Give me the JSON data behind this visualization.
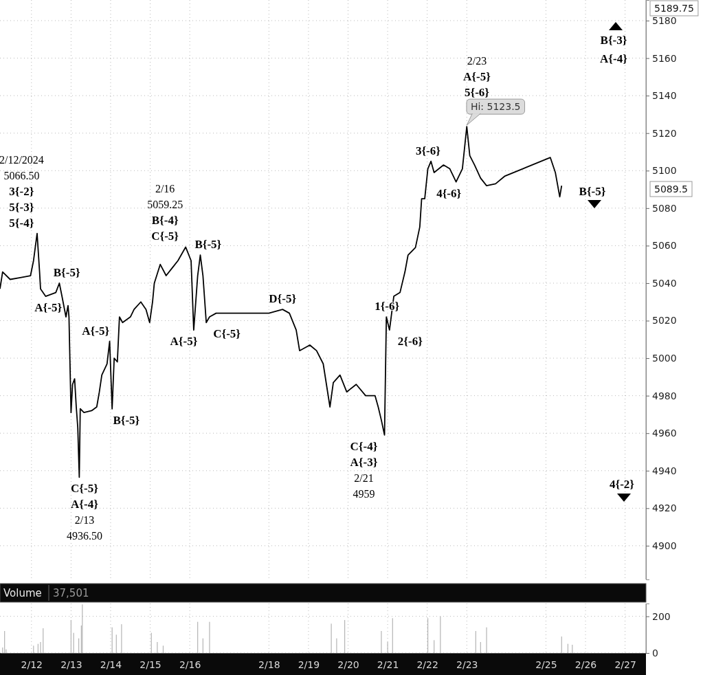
{
  "chart_data": [
    {
      "type": "line",
      "color": "#000000",
      "grid": true,
      "tick_labels": "y",
      "xlim": [
        "2024-02-11T04:55",
        "2024-02-27T12:40"
      ],
      "ylim": [
        4882,
        5191
      ],
      "xticks": [
        {
          "value": "2024-02-12",
          "label": null
        },
        {
          "value": "2024-02-13",
          "label": null
        },
        {
          "value": "2024-02-14",
          "label": null
        },
        {
          "value": "2024-02-15",
          "label": null
        },
        {
          "value": "2024-02-16",
          "label": null
        },
        {
          "value": "2024-02-18",
          "label": null
        },
        {
          "value": "2024-02-19",
          "label": null
        },
        {
          "value": "2024-02-20",
          "label": null
        },
        {
          "value": "2024-02-21",
          "label": null
        },
        {
          "value": "2024-02-22",
          "label": null
        },
        {
          "value": "2024-02-23",
          "label": null
        },
        {
          "value": "2024-02-25",
          "label": null
        },
        {
          "value": "2024-02-26",
          "label": null
        },
        {
          "value": "2024-02-27",
          "label": null
        }
      ],
      "yticks": [
        4900,
        4920,
        4940,
        4960,
        4980,
        5000,
        5020,
        5040,
        5060,
        5080,
        5100,
        5120,
        5140,
        5160,
        5180
      ],
      "x": [
        "2024-02-11T04:55",
        "2024-02-11T06:30",
        "2024-02-11T11:05",
        "2024-02-11T17:15",
        "2024-02-11T23:25",
        "2024-02-12T01:15",
        "2024-02-12T03:25",
        "2024-02-12T04:55",
        "2024-02-12T05:30",
        "2024-02-12T08:35",
        "2024-02-12T14:45",
        "2024-02-12T16:55",
        "2024-02-12T18:30",
        "2024-02-12T20:55",
        "2024-02-12T22:10",
        "2024-02-12T22:45",
        "2024-02-13T00:00",
        "2024-02-13T00:55",
        "2024-02-13T02:10",
        "2024-02-13T03:10",
        "2024-02-13T04:05",
        "2024-02-13T05:00",
        "2024-02-13T05:35",
        "2024-02-13T07:50",
        "2024-02-13T12:30",
        "2024-02-13T15:35",
        "2024-02-13T17:10",
        "2024-02-13T18:40",
        "2024-02-13T21:50",
        "2024-02-13T23:25",
        "2024-02-14T00:55",
        "2024-02-14T02:10",
        "2024-02-14T04:05",
        "2024-02-14T05:22",
        "2024-02-14T07:16",
        "2024-02-14T12:00",
        "2024-02-14T14:13",
        "2024-02-14T18:19",
        "2024-02-14T21:28",
        "2024-02-14T23:41",
        "2024-02-15T01:26",
        "2024-02-15T02:30",
        "2024-02-15T06:05",
        "2024-02-15T09:40",
        "2024-02-15T13:15",
        "2024-02-15T16:50",
        "2024-02-15T21:30",
        "2024-02-16T00:48",
        "2024-02-16T02:24",
        "2024-02-16T04:48",
        "2024-02-16T06:24",
        "2024-02-16T08:00",
        "2024-02-16T10:00",
        "2024-02-16T12:00",
        "2024-02-16T16:00",
        "2024-02-18T00:00",
        "2024-02-18T08:17",
        "2024-02-18T12:25",
        "2024-02-18T16:33",
        "2024-02-18T18:37",
        "2024-02-19T00:49",
        "2024-02-19T04:53",
        "2024-02-19T08:56",
        "2024-02-19T13:01",
        "2024-02-19T15:03",
        "2024-02-19T19:07",
        "2024-02-19T23:11",
        "2024-02-20T04:57",
        "2024-02-20T10:40",
        "2024-02-20T16:23",
        "2024-02-20T18:17",
        "2024-02-20T20:11",
        "2024-02-20T22:06",
        "2024-02-20T23:14",
        "2024-02-21T01:08",
        "2024-02-21T03:45",
        "2024-02-21T07:30",
        "2024-02-21T10:30",
        "2024-02-21T12:23",
        "2024-02-21T16:52",
        "2024-02-21T19:30",
        "2024-02-21T20:37",
        "2024-02-21T22:30",
        "2024-02-22T00:23",
        "2024-02-22T02:17",
        "2024-02-22T04:11",
        "2024-02-22T09:54",
        "2024-02-22T13:43",
        "2024-02-22T17:31",
        "2024-02-22T21:20",
        "2024-02-23T00:00",
        "2024-02-23T01:49",
        "2024-02-23T04:44",
        "2024-02-23T08:22",
        "2024-02-23T12:00",
        "2024-02-23T17:27",
        "2024-02-23T22:55",
        "2024-02-25T02:40",
        "2024-02-25T05:43",
        "2024-02-25T08:23",
        "2024-02-25T09:31"
      ],
      "values": [
        5037,
        5046,
        5042,
        5043,
        5044,
        5052,
        5066.5,
        5046,
        5037,
        5033,
        5035,
        5040,
        5033,
        5022,
        5028,
        5022,
        4971,
        4986,
        4989,
        4974,
        4963,
        4936.5,
        4973,
        4971,
        4972,
        4974,
        4982,
        4991,
        4997,
        5009,
        4973,
        5000,
        4998,
        5022,
        5019,
        5022,
        5026,
        5030,
        5026,
        5019,
        5030,
        5040,
        5050,
        5044,
        5048,
        5052,
        5059.25,
        5052,
        5015,
        5044,
        5055,
        5044,
        5019,
        5022,
        5024,
        5024,
        5026,
        5024,
        5015,
        5004,
        5007,
        5004,
        4997,
        4974,
        4987,
        4991,
        4982,
        4986,
        4980,
        4980,
        4974,
        4967,
        4959,
        5022,
        5015,
        5033,
        5035,
        5046,
        5055,
        5059,
        5070,
        5085,
        5085,
        5101,
        5105,
        5099,
        5103,
        5101,
        5094,
        5101,
        5123.5,
        5108,
        5103,
        5096,
        5092,
        5093,
        5097,
        5107,
        5099,
        5086,
        5092
      ],
      "annotations": [
        {
          "text": "2/12/2024\n5066.50\n3{-2}\n5{-3}\n5{-4}",
          "x": "2024-02-12T03:25",
          "y": 5066.5
        },
        {
          "text": "B{-5}",
          "x": "2024-02-12T16:55",
          "y": 5040
        },
        {
          "text": "A{-5}",
          "x": "2024-02-12T08:35",
          "y": 5033
        },
        {
          "text": "C{-5}\nA{-4}\n2/13\n4936.50",
          "x": "2024-02-13T05:00",
          "y": 4936.5
        },
        {
          "text": "A{-5}",
          "x": "2024-02-13T23:25",
          "y": 5009
        },
        {
          "text": "B{-5}",
          "x": "2024-02-14T00:55",
          "y": 4973
        },
        {
          "text": "2/16\n5059.25\nB{-4}\nC{-5}",
          "x": "2024-02-15T21:30",
          "y": 5059.25
        },
        {
          "text": "B{-5}",
          "x": "2024-02-16T06:24",
          "y": 5055
        },
        {
          "text": "A{-5}",
          "x": "2024-02-16T02:24",
          "y": 5015
        },
        {
          "text": "C{-5}",
          "x": "2024-02-16T10:00",
          "y": 5019
        },
        {
          "text": "D{-5}",
          "x": "2024-02-18T08:17",
          "y": 5026
        },
        {
          "text": "1{-6}",
          "x": "2024-02-20T23:14",
          "y": 5022
        },
        {
          "text": "2{-6}",
          "x": "2024-02-21T01:08",
          "y": 5015
        },
        {
          "text": "C{-4}\nA{-3}\n2/21\n4959",
          "x": "2024-02-20T22:06",
          "y": 4959
        },
        {
          "text": "3{-6}",
          "x": "2024-02-22T02:17",
          "y": 5105
        },
        {
          "text": "4{-6}",
          "x": "2024-02-22T17:31",
          "y": 5094
        },
        {
          "text": "2/23\nA{-5}\n5{-6}",
          "x": "2024-02-23T00:00",
          "y": 5123.5
        },
        {
          "text": "Hi: 5123.5",
          "x": "2024-02-23T00:00",
          "y": 5123.5
        },
        "B{-3}",
        "A{-4}",
        "B{-5}",
        "4{-2}",
        "5189.75",
        "5089.5"
      ]
    },
    {
      "type": "bar",
      "title": "Volume",
      "color": "#b4b4b4",
      "grid": true,
      "xlim": [
        "2024-02-11T04:55",
        "2024-02-27T12:40"
      ],
      "ylim": [
        0,
        270
      ],
      "yticks": [
        0,
        200
      ],
      "xticks": [
        {
          "value": "2024-02-12",
          "label": "2/12"
        },
        {
          "value": "2024-02-13",
          "label": "2/13"
        },
        {
          "value": "2024-02-14",
          "label": "2/14"
        },
        {
          "value": "2024-02-15",
          "label": "2/15"
        },
        {
          "value": "2024-02-16",
          "label": "2/16"
        },
        {
          "value": "2024-02-18",
          "label": "2/18"
        },
        {
          "value": "2024-02-19",
          "label": "2/19"
        },
        {
          "value": "2024-02-20",
          "label": "2/20"
        },
        {
          "value": "2024-02-21",
          "label": "2/21"
        },
        {
          "value": "2024-02-22",
          "label": "2/22"
        },
        {
          "value": "2024-02-23",
          "label": "2/23"
        },
        {
          "value": "2024-02-25",
          "label": "2/25"
        },
        {
          "value": "2024-02-26",
          "label": "2/26"
        },
        {
          "value": "2024-02-27",
          "label": "2/27"
        }
      ],
      "x": [
        "2024-02-11T06:30",
        "2024-02-11T07:42",
        "2024-02-11T08:37",
        "2024-02-12T01:15",
        "2024-02-12T04:00",
        "2024-02-12T05:30",
        "2024-02-12T07:05",
        "2024-02-13T00:00",
        "2024-02-13T01:34",
        "2024-02-13T04:41",
        "2024-02-13T06:14",
        "2024-02-13T06:51",
        "2024-02-14T00:55",
        "2024-02-14T03:28",
        "2024-02-14T06:38",
        "2024-02-15T00:43",
        "2024-02-15T04:18",
        "2024-02-15T07:53",
        "2024-02-16T04:48",
        "2024-02-16T08:00",
        "2024-02-16T12:00",
        "2024-02-19T13:50",
        "2024-02-19T17:05",
        "2024-02-19T21:58",
        "2024-02-20T20:11",
        "2024-02-21T00:00",
        "2024-02-21T03:00",
        "2024-02-22T00:23",
        "2024-02-22T04:11",
        "2024-02-22T08:00",
        "2024-02-23T05:27",
        "2024-02-23T08:22",
        "2024-02-23T12:00",
        "2024-02-25T09:31",
        "2024-02-25T13:20",
        "2024-02-25T16:00"
      ],
      "values": [
        30,
        120,
        20,
        40,
        50,
        60,
        135,
        180,
        110,
        80,
        150,
        265,
        140,
        100,
        157,
        110,
        60,
        40,
        170,
        80,
        170,
        160,
        80,
        180,
        120,
        60,
        190,
        190,
        70,
        200,
        120,
        60,
        140,
        90,
        50,
        45
      ],
      "annotations": [
        "37,501"
      ]
    }
  ]
}
